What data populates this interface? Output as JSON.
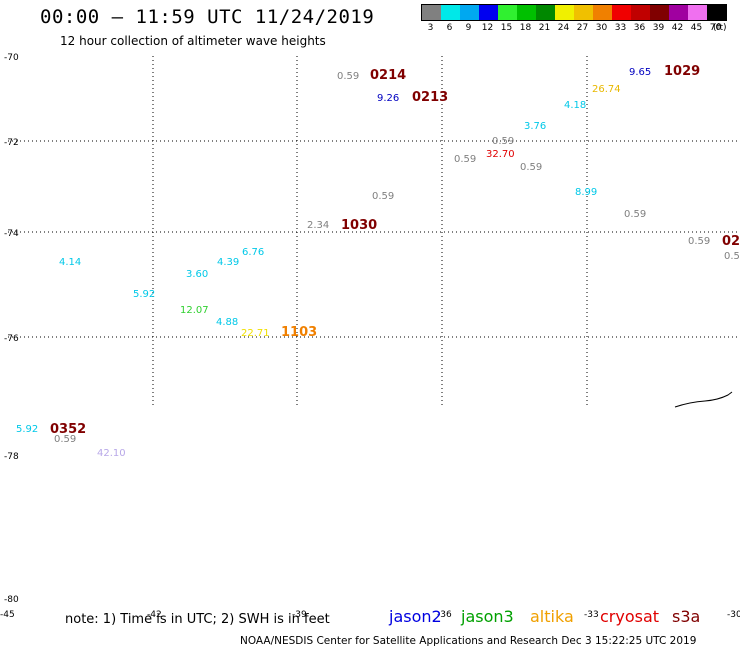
{
  "title": "00:00 — 11:59 UTC 11/24/2019",
  "subtitle": "12 hour collection of altimeter wave heights",
  "legend": {
    "unit": "(ft)",
    "bins": [
      {
        "label": "3",
        "color": "#808080"
      },
      {
        "label": "6",
        "color": "#00e8e8"
      },
      {
        "label": "9",
        "color": "#00a8f0"
      },
      {
        "label": "12",
        "color": "#0000f0"
      },
      {
        "label": "15",
        "color": "#30f030"
      },
      {
        "label": "18",
        "color": "#00c000"
      },
      {
        "label": "21",
        "color": "#008800"
      },
      {
        "label": "24",
        "color": "#f0f000"
      },
      {
        "label": "27",
        "color": "#f0c000"
      },
      {
        "label": "30",
        "color": "#f08000"
      },
      {
        "label": "33",
        "color": "#f00000"
      },
      {
        "label": "36",
        "color": "#c00000"
      },
      {
        "label": "39",
        "color": "#800000"
      },
      {
        "label": "42",
        "color": "#a000a0"
      },
      {
        "label": "45",
        "color": "#f070f0"
      },
      {
        "label": "70",
        "color": "#000000"
      }
    ]
  },
  "lat_labels": [
    "-70",
    "-72",
    "-74",
    "-76",
    "-78",
    "-80"
  ],
  "lon_labels": [
    "-45",
    "-42",
    "-39",
    "-36",
    "-33",
    "-30"
  ],
  "observations": [
    {
      "text": "0.59",
      "color": "#808080"
    },
    {
      "text": "0214",
      "color": "#800000"
    },
    {
      "text": "9.26",
      "color": "#0000c0"
    },
    {
      "text": "0213",
      "color": "#800000"
    },
    {
      "text": "9.65",
      "color": "#0000c0"
    },
    {
      "text": "1029",
      "color": "#800000"
    },
    {
      "text": "26.74",
      "color": "#e8b800"
    },
    {
      "text": "4.18",
      "color": "#00c8e8"
    },
    {
      "text": "3.76",
      "color": "#00c8e8"
    },
    {
      "text": "0.59",
      "color": "#808080"
    },
    {
      "text": "32.70",
      "color": "#e00000"
    },
    {
      "text": "0.59",
      "color": "#808080"
    },
    {
      "text": "0.59",
      "color": "#808080"
    },
    {
      "text": "0.59",
      "color": "#808080"
    },
    {
      "text": "8.99",
      "color": "#00c8e8"
    },
    {
      "text": "0.59",
      "color": "#808080"
    },
    {
      "text": "2.34",
      "color": "#808080"
    },
    {
      "text": "1030",
      "color": "#800000"
    },
    {
      "text": "0.59",
      "color": "#808080"
    },
    {
      "text": "02",
      "color": "#800000"
    },
    {
      "text": "0.5",
      "color": "#808080"
    },
    {
      "text": "4.14",
      "color": "#00c8e8"
    },
    {
      "text": "6.76",
      "color": "#00c8e8"
    },
    {
      "text": "4.39",
      "color": "#00c8e8"
    },
    {
      "text": "3.60",
      "color": "#00c8e8"
    },
    {
      "text": "5.92",
      "color": "#00c8e8"
    },
    {
      "text": "12.07",
      "color": "#30d030"
    },
    {
      "text": "4.88",
      "color": "#00c8e8"
    },
    {
      "text": "22.71",
      "color": "#f0e000"
    },
    {
      "text": "1103",
      "color": "#f08000"
    },
    {
      "text": "5.92",
      "color": "#00c8e8"
    },
    {
      "text": "0352",
      "color": "#800000"
    },
    {
      "text": "0.59",
      "color": "#808080"
    },
    {
      "text": "42.10",
      "color": "#b8a8e8"
    }
  ],
  "note": "note: 1) Time is in UTC; 2) SWH is in feet",
  "satellites": [
    {
      "name": "jason2",
      "color": "#0000e0"
    },
    {
      "name": "jason3",
      "color": "#00a000"
    },
    {
      "name": "altika",
      "color": "#f0a000"
    },
    {
      "name": "cryosat",
      "color": "#e00000"
    },
    {
      "name": "s3a",
      "color": "#800000"
    }
  ],
  "credit": "NOAA/NESDIS Center for Satellite Applications and Research   Dec  3 15:22:25 UTC 2019"
}
